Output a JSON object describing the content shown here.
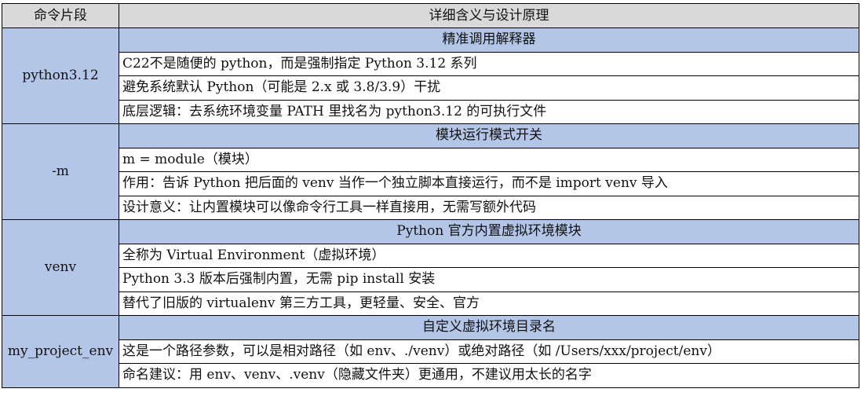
{
  "headers": [
    "命令片段",
    "详细含义与设计原理"
  ],
  "colors": {
    "header_bg": "#d9d9d9",
    "section_bg": "#b4c6e7"
  },
  "sections": [
    {
      "segment": "python3.12",
      "title": "精准调用解释器",
      "rows": [
        "C22不是随便的 python，而是强制指定 Python 3.12 系列",
        "避免系统默认 Python（可能是 2.x 或 3.8/3.9）干扰",
        "底层逻辑：去系统环境变量 PATH 里找名为 python3.12 的可执行文件"
      ]
    },
    {
      "segment": "-m",
      "title": "模块运行模式开关",
      "rows": [
        "m = module（模块）",
        "作用：告诉 Python 把后面的 venv 当作一个独立脚本直接运行，而不是 import venv 导入",
        "设计意义：让内置模块可以像命令行工具一样直接用，无需写额外代码"
      ]
    },
    {
      "segment": "venv",
      "title": "Python 官方内置虚拟环境模块",
      "rows": [
        "全称为 Virtual Environment（虚拟环境）",
        "Python 3.3 版本后强制内置，无需 pip install 安装",
        "替代了旧版的 virtualenv 第三方工具，更轻量、安全、官方"
      ]
    },
    {
      "segment": "my_project_env",
      "title": "自定义虚拟环境目录名",
      "rows": [
        "这是一个路径参数，可以是相对路径（如 env、./venv）或绝对路径（如 /Users/xxx/project/env）",
        "命名建议：用 env、venv、.venv（隐藏文件夹）更通用，不建议用太长的名字"
      ]
    }
  ]
}
